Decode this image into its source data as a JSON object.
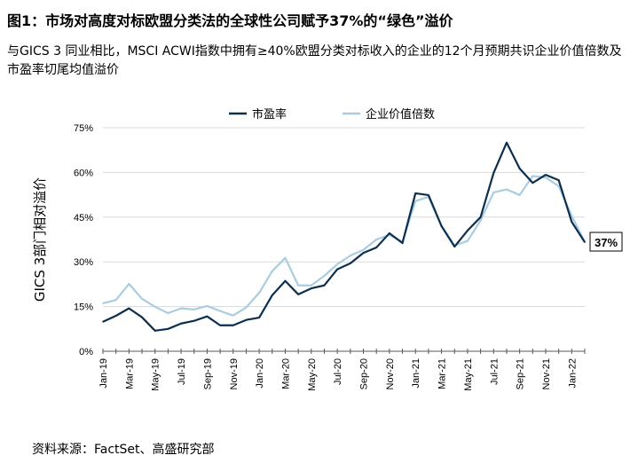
{
  "title": "图1：市场对高度对标欧盟分类法的全球性公司赋予37%的“绿色”溢价",
  "subtitle": "与GICS 3 同业相比，MSCI ACWI指数中拥有≥40%欧盟分类对标收入的企业的12个月预期共识企业价值倍数及市盈率切尾均值溢价",
  "source": "资料来源：FactSet、高盛研究部",
  "chart_data": {
    "type": "line",
    "ylabel": "GICS 3部门相对溢价",
    "ylim": [
      0,
      75
    ],
    "yticks": [
      0,
      15,
      30,
      45,
      60,
      75
    ],
    "ytick_labels": [
      "0%",
      "15%",
      "30%",
      "45%",
      "60%",
      "75%"
    ],
    "grid": true,
    "legend_position": "top-center",
    "x": [
      "Jan-19",
      "Feb-19",
      "Mar-19",
      "Apr-19",
      "May-19",
      "Jun-19",
      "Jul-19",
      "Aug-19",
      "Sep-19",
      "Oct-19",
      "Nov-19",
      "Dec-19",
      "Jan-20",
      "Feb-20",
      "Mar-20",
      "Apr-20",
      "May-20",
      "Jun-20",
      "Jul-20",
      "Aug-20",
      "Sep-20",
      "Oct-20",
      "Nov-20",
      "Dec-20",
      "Jan-21",
      "Feb-21",
      "Mar-21",
      "Apr-21",
      "May-21",
      "Jun-21",
      "Jul-21",
      "Aug-21",
      "Sep-21",
      "Oct-21",
      "Nov-21",
      "Dec-21",
      "Jan-22",
      "Feb-22"
    ],
    "xtick_labels": [
      "Jan-19",
      "Mar-19",
      "May-19",
      "Jul-19",
      "Sep-19",
      "Nov-19",
      "Jan-20",
      "Mar-20",
      "May-20",
      "Jul-20",
      "Sep-20",
      "Nov-20",
      "Jan-21",
      "Mar-21",
      "May-21",
      "Jul-21",
      "Sep-21",
      "Nov-21",
      "Jan-22"
    ],
    "series": [
      {
        "name": "市盈率",
        "color": "#0d2f4f",
        "values": [
          9.9,
          11.9,
          14.4,
          11.4,
          6.9,
          7.5,
          9.3,
          10.2,
          11.7,
          8.7,
          8.7,
          10.5,
          11.3,
          18.8,
          23.6,
          19.1,
          21.1,
          22.1,
          27.5,
          29.5,
          33,
          34.8,
          39.6,
          36.3,
          53,
          52.4,
          42,
          35.1,
          40.5,
          45,
          59.8,
          70,
          61.3,
          56.5,
          59.2,
          57.4,
          43.4,
          36.6
        ]
      },
      {
        "name": "企业价值倍数",
        "color": "#a9cde0",
        "values": [
          16.1,
          17.2,
          22.6,
          17.6,
          14.9,
          12.8,
          14.4,
          14,
          15.2,
          13.5,
          12,
          14.7,
          19.6,
          26.9,
          31.3,
          22.1,
          22.1,
          25.3,
          29.2,
          32.1,
          34,
          37.5,
          39,
          36.7,
          50.4,
          51.8,
          42,
          35.5,
          37,
          43.9,
          53.3,
          54.3,
          52.4,
          58.8,
          58.3,
          55.4,
          45.4,
          36.6
        ]
      }
    ],
    "annotation": "37%"
  }
}
